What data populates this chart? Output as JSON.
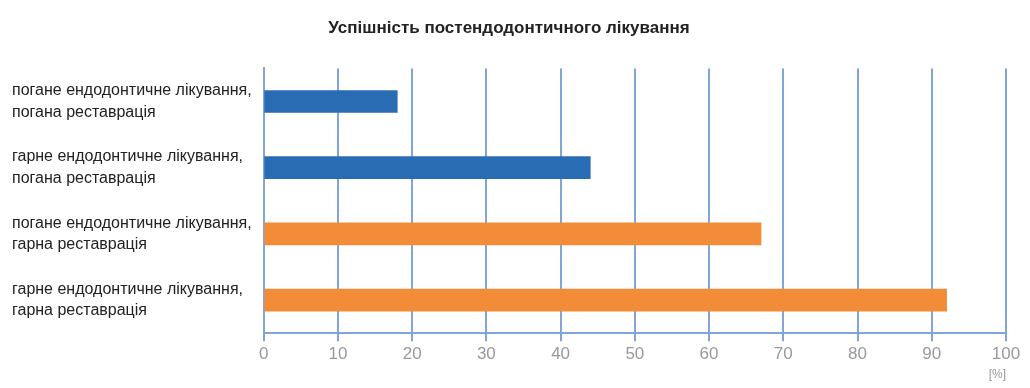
{
  "chart_data": {
    "type": "bar",
    "orientation": "horizontal",
    "title": "Успішність постендодонтичного лікування",
    "xlabel": "[%]",
    "categories": [
      "погане ендодонтичне лікування, погана реставрація",
      "гарне ендодонтичне лікування, погана реставрація",
      "погане ендодонтичне лікування, гарна реставрація",
      "гарне ендодонтичне лікування, гарна реставрація"
    ],
    "values": [
      18,
      44,
      67,
      92
    ],
    "colors": [
      "#2a6cb3",
      "#2a6cb3",
      "#f28c38",
      "#f28c38"
    ],
    "xlim": [
      0,
      100
    ],
    "xticks": [
      0,
      10,
      20,
      30,
      40,
      50,
      60,
      70,
      80,
      90,
      100
    ],
    "grid": "x",
    "legend": false
  }
}
